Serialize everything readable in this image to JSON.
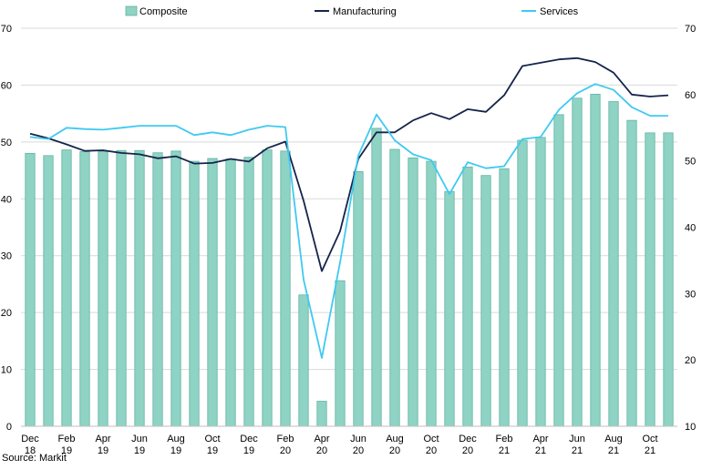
{
  "chart_data": {
    "type": "bar",
    "x": [
      "Dec-18",
      "Jan-19",
      "Feb-19",
      "Mar-19",
      "Apr-19",
      "May-19",
      "Jun-19",
      "Jul-19",
      "Aug-19",
      "Sep-19",
      "Oct-19",
      "Nov-19",
      "Dec-19",
      "Jan-20",
      "Feb-20",
      "Mar-20",
      "Apr-20",
      "May-20",
      "Jun-20",
      "Jul-20",
      "Aug-20",
      "Sep-20",
      "Oct-20",
      "Nov-20",
      "Dec-20",
      "Jan-21",
      "Feb-21",
      "Mar-21",
      "Apr-21",
      "May-21",
      "Jun-21",
      "Jul-21",
      "Aug-21",
      "Sep-21",
      "Oct-21",
      "Nov-21"
    ],
    "x_tick_labels": [
      [
        "Dec",
        "18"
      ],
      [
        "Feb",
        "19"
      ],
      [
        "Apr",
        "19"
      ],
      [
        "Jun",
        "19"
      ],
      [
        "Aug",
        "19"
      ],
      [
        "Oct",
        "19"
      ],
      [
        "Dec",
        "19"
      ],
      [
        "Feb",
        "20"
      ],
      [
        "Apr",
        "20"
      ],
      [
        "Jun",
        "20"
      ],
      [
        "Aug",
        "20"
      ],
      [
        "Oct",
        "20"
      ],
      [
        "Dec",
        "20"
      ],
      [
        "Feb",
        "21"
      ],
      [
        "Apr",
        "21"
      ],
      [
        "Jun",
        "21"
      ],
      [
        "Aug",
        "21"
      ],
      [
        "Oct",
        "21"
      ]
    ],
    "x_tick_every": 2,
    "series": [
      {
        "name": "Composite",
        "type": "bar",
        "axis": "left",
        "color": "#8fd3c4",
        "edge_color": "#5fb5a3",
        "values": [
          48.0,
          47.6,
          48.6,
          48.3,
          48.3,
          48.5,
          48.5,
          48.1,
          48.4,
          46.6,
          47.1,
          47.0,
          47.3,
          48.6,
          48.4,
          23.1,
          4.4,
          25.6,
          44.8,
          52.4,
          48.7,
          47.2,
          46.6,
          41.3,
          45.6,
          44.1,
          45.3,
          50.3,
          50.8,
          54.8,
          57.7,
          58.4,
          57.1,
          53.8,
          51.6,
          51.6
        ]
      },
      {
        "name": "Manufacturing",
        "type": "line",
        "axis": "right",
        "color": "#15244b",
        "values": [
          54.1,
          53.4,
          52.5,
          51.5,
          51.6,
          51.2,
          51.0,
          50.4,
          50.7,
          49.6,
          49.7,
          50.3,
          49.9,
          51.9,
          52.9,
          44.0,
          33.4,
          39.4,
          50.3,
          54.3,
          54.3,
          56.1,
          57.2,
          56.3,
          57.8,
          57.4,
          59.9,
          64.3,
          64.8,
          65.3,
          65.5,
          64.9,
          63.3,
          60.0,
          59.7,
          59.9
        ]
      },
      {
        "name": "Services",
        "type": "line",
        "axis": "right",
        "color": "#3fcaf0",
        "values": [
          53.6,
          53.3,
          55.0,
          54.8,
          54.7,
          55.0,
          55.3,
          55.3,
          55.3,
          53.9,
          54.3,
          53.9,
          54.7,
          55.3,
          55.1,
          32.1,
          20.3,
          34.7,
          50.8,
          57.0,
          53.1,
          51.0,
          50.1,
          45.0,
          49.8,
          48.9,
          49.2,
          53.3,
          53.6,
          57.7,
          60.2,
          61.6,
          60.7,
          58.1,
          56.8,
          56.8
        ]
      }
    ],
    "y_left": {
      "ylim": [
        0,
        70
      ],
      "ticks": [
        0,
        10,
        20,
        30,
        40,
        50,
        60,
        70
      ]
    },
    "y_right": {
      "ylim": [
        10,
        70
      ],
      "ticks": [
        10,
        20,
        30,
        40,
        50,
        60,
        70
      ]
    },
    "grid": true,
    "legend_position": "top"
  },
  "source_text": "Source: Markit"
}
